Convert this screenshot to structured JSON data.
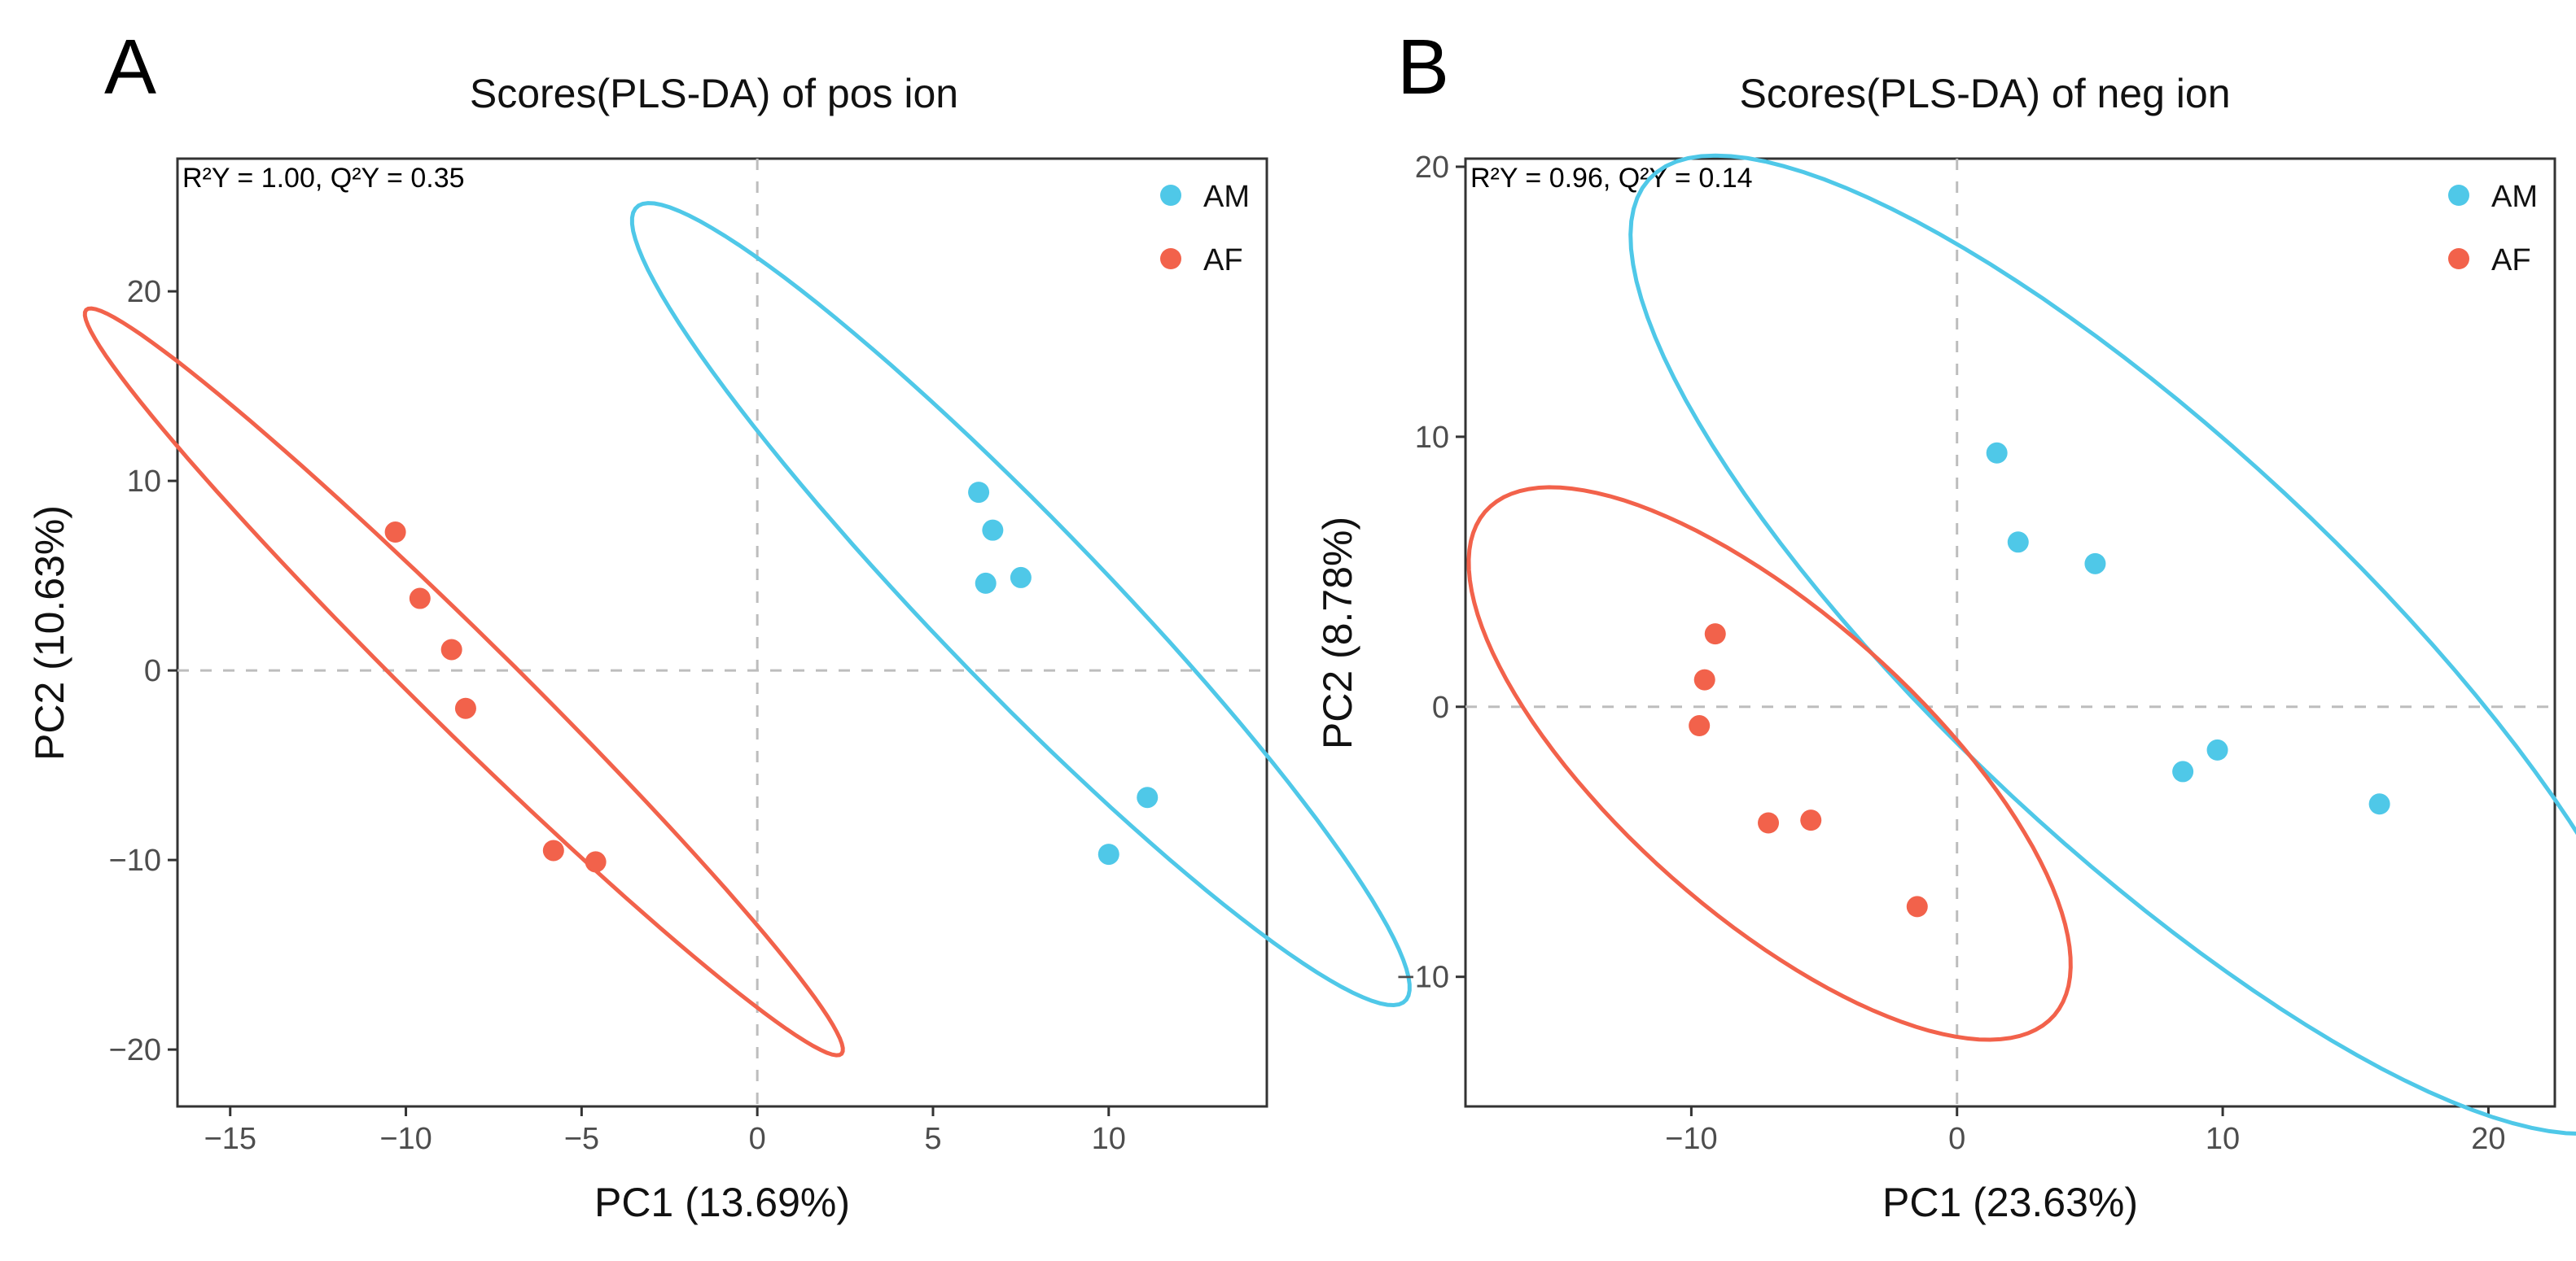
{
  "chart_data": [
    {
      "panel": "A",
      "type": "scatter",
      "title": "Scores(PLS-DA) of pos ion",
      "stats": "R²Y = 1.00, Q²Y = 0.35",
      "xlabel": "PC1 (13.69%)",
      "ylabel": "PC2 (10.63%)",
      "xlim": [
        -16.5,
        14.5
      ],
      "ylim": [
        -23,
        27
      ],
      "xticks": [
        -15,
        -10,
        -5,
        0,
        5,
        10
      ],
      "yticks": [
        -20,
        -10,
        0,
        10,
        20
      ],
      "xtick_labels": [
        "−15",
        "−10",
        "−5",
        "0",
        "5",
        "10"
      ],
      "ytick_labels": [
        "−20",
        "−10",
        "0",
        "10",
        "20"
      ],
      "legend": {
        "position": "top-right",
        "entries": [
          "AM",
          "AF"
        ]
      },
      "series": [
        {
          "name": "AM",
          "color": "#4FC8E8",
          "points": [
            [
              6.3,
              9.4
            ],
            [
              6.7,
              7.4
            ],
            [
              6.5,
              4.6
            ],
            [
              7.5,
              4.9
            ],
            [
              10.0,
              -9.7
            ],
            [
              11.1,
              -6.7
            ]
          ],
          "ellipse": {
            "cx": 7.5,
            "cy": 3.5,
            "rx": 23.7,
            "ry": 2.9,
            "angle": -63
          }
        },
        {
          "name": "AF",
          "color": "#F2624B",
          "points": [
            [
              -10.3,
              7.3
            ],
            [
              -9.6,
              3.8
            ],
            [
              -8.7,
              1.1
            ],
            [
              -8.3,
              -2.0
            ],
            [
              -5.8,
              -9.5
            ],
            [
              -4.6,
              -10.1
            ]
          ],
          "ellipse": {
            "cx": -8.35,
            "cy": -0.6,
            "rx": 22.4,
            "ry": 1.65,
            "angle": -61.5
          }
        }
      ]
    },
    {
      "panel": "B",
      "type": "scatter",
      "title": "Scores(PLS-DA) of neg ion",
      "stats": "R²Y = 0.96, Q²Y = 0.14",
      "xlabel": "PC1 (23.63%)",
      "ylabel": "PC2 (8.78%)",
      "xlim": [
        -18.5,
        22.5
      ],
      "ylim": [
        -14.8,
        20.3
      ],
      "xticks": [
        -10,
        0,
        10,
        20
      ],
      "yticks": [
        -10,
        0,
        10,
        20
      ],
      "xtick_labels": [
        "−10",
        "0",
        "10",
        "20"
      ],
      "ytick_labels": [
        "−10",
        "0",
        "10",
        "20"
      ],
      "legend": {
        "position": "top-right",
        "entries": [
          "AM",
          "AF"
        ]
      },
      "series": [
        {
          "name": "AM",
          "color": "#4FC8E8",
          "points": [
            [
              1.5,
              9.4
            ],
            [
              2.3,
              6.1
            ],
            [
              5.2,
              5.3
            ],
            [
              8.5,
              -2.4
            ],
            [
              9.8,
              -1.6
            ],
            [
              15.9,
              -3.6
            ]
          ],
          "ellipse": {
            "cx": 7.2,
            "cy": 2.3,
            "rx": 25.5,
            "ry": 7.6,
            "angle": -42.5
          }
        },
        {
          "name": "AF",
          "color": "#F2624B",
          "points": [
            [
              -9.1,
              2.7
            ],
            [
              -9.5,
              1.0
            ],
            [
              -9.7,
              -0.7
            ],
            [
              -7.1,
              -4.3
            ],
            [
              -5.5,
              -4.2
            ],
            [
              -1.5,
              -7.4
            ]
          ],
          "ellipse": {
            "cx": -7.05,
            "cy": -2.1,
            "rx": 14.2,
            "ry": 5.6,
            "angle": -41
          }
        }
      ]
    }
  ]
}
